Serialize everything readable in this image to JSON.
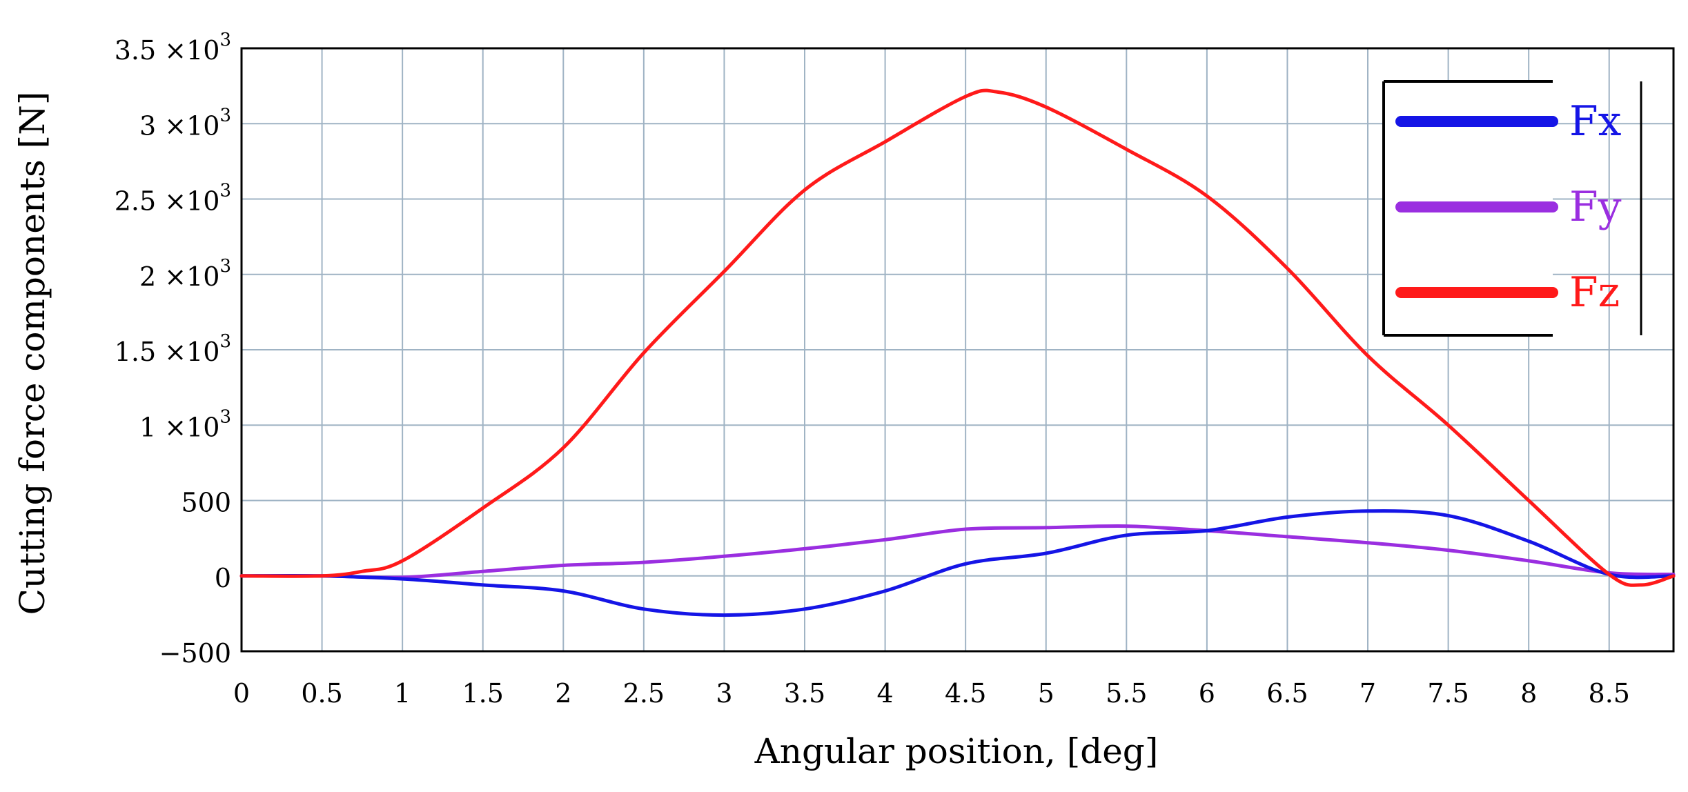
{
  "chart_data": {
    "type": "line",
    "xlabel": "Angular position, [deg]",
    "ylabel": "Cutting force components [N]",
    "xlim": [
      0,
      8.9
    ],
    "ylim": [
      -500,
      3500
    ],
    "grid": true,
    "legend_position": "top-right",
    "x_ticks": [
      "0",
      "0.5",
      "1",
      "1.5",
      "2",
      "2.5",
      "3",
      "3.5",
      "4",
      "4.5",
      "5",
      "5.5",
      "6",
      "6.5",
      "7",
      "7.5",
      "8",
      "8.5"
    ],
    "y_ticks": [
      {
        "value": 3500,
        "mantissa": "3.5",
        "has_exp": true
      },
      {
        "value": 3000,
        "mantissa": "3",
        "has_exp": true
      },
      {
        "value": 2500,
        "mantissa": "2.5",
        "has_exp": true
      },
      {
        "value": 2000,
        "mantissa": "2",
        "has_exp": true
      },
      {
        "value": 1500,
        "mantissa": "1.5",
        "has_exp": true
      },
      {
        "value": 1000,
        "mantissa": "1",
        "has_exp": true
      },
      {
        "value": 500,
        "mantissa": "500",
        "has_exp": false
      },
      {
        "value": 0,
        "mantissa": "0",
        "has_exp": false
      },
      {
        "value": -500,
        "mantissa": "−500",
        "has_exp": false
      }
    ],
    "exp_base": "×10",
    "exp_power": "3",
    "series": [
      {
        "name": "Fx",
        "color": "#1515e6",
        "x": [
          0,
          0.5,
          1,
          1.5,
          2,
          2.5,
          3,
          3.5,
          4,
          4.5,
          5,
          5.5,
          6,
          6.5,
          7,
          7.5,
          8,
          8.5,
          8.9
        ],
        "y": [
          0,
          0,
          -20,
          -60,
          -100,
          -220,
          -260,
          -220,
          -100,
          80,
          150,
          270,
          300,
          390,
          430,
          400,
          230,
          10,
          0
        ]
      },
      {
        "name": "Fy",
        "color": "#9a2ee0",
        "x": [
          0,
          0.5,
          1,
          1.5,
          2,
          2.5,
          3,
          3.5,
          4,
          4.5,
          5,
          5.5,
          6,
          6.5,
          7,
          7.5,
          8,
          8.5,
          8.9
        ],
        "y": [
          0,
          0,
          -10,
          30,
          70,
          90,
          130,
          180,
          240,
          310,
          320,
          330,
          300,
          260,
          220,
          170,
          100,
          20,
          10
        ]
      },
      {
        "name": "Fz",
        "color": "#ff1a1a",
        "x": [
          0,
          0.5,
          0.75,
          1,
          1.5,
          2,
          2.5,
          3,
          3.5,
          4,
          4.5,
          4.7,
          5,
          5.5,
          6,
          6.5,
          7,
          7.5,
          8,
          8.5,
          8.7,
          8.9
        ],
        "y": [
          0,
          0,
          30,
          100,
          450,
          850,
          1480,
          2020,
          2560,
          2880,
          3180,
          3210,
          3110,
          2830,
          2520,
          2040,
          1460,
          1000,
          500,
          10,
          -60,
          0
        ]
      }
    ]
  }
}
